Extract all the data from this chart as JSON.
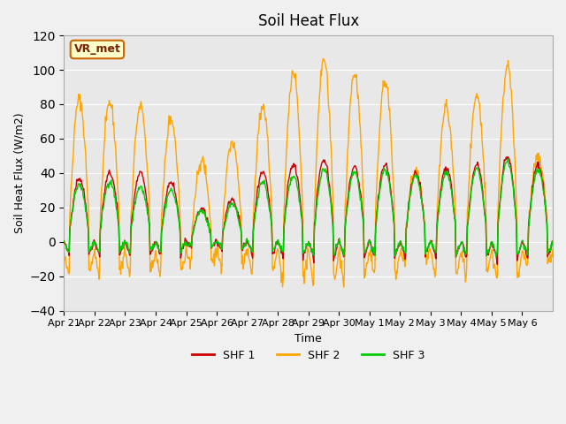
{
  "title": "Soil Heat Flux",
  "xlabel": "Time",
  "ylabel": "Soil Heat Flux (W/m2)",
  "ylim": [
    -40,
    120
  ],
  "yticks": [
    -40,
    -20,
    0,
    20,
    40,
    60,
    80,
    100,
    120
  ],
  "background_color": "#f0f0f0",
  "plot_bg_color": "#e8e8e8",
  "line_colors": {
    "SHF 1": "#cc0000",
    "SHF 2": "#ffa500",
    "SHF 3": "#00cc00"
  },
  "legend_label": "VR_met",
  "n_days": 16,
  "x_tick_labels": [
    "Apr 21",
    "Apr 22",
    "Apr 23",
    "Apr 24",
    "Apr 25",
    "Apr 26",
    "Apr 27",
    "Apr 28",
    "Apr 29",
    "Apr 30",
    "May 1",
    "May 2",
    "May 3",
    "May 4",
    "May 5",
    "May 6"
  ],
  "shf2_amps": [
    83,
    81,
    79,
    72,
    47,
    58,
    79,
    98,
    106,
    98,
    94,
    41,
    79,
    85,
    103,
    50
  ],
  "shf1_amps": [
    37,
    40,
    40,
    35,
    19,
    25,
    40,
    45,
    48,
    44,
    45,
    40,
    43,
    45,
    50,
    45
  ],
  "shf3_amps": [
    33,
    35,
    32,
    30,
    18,
    22,
    35,
    38,
    42,
    40,
    42,
    38,
    40,
    42,
    47,
    42
  ]
}
